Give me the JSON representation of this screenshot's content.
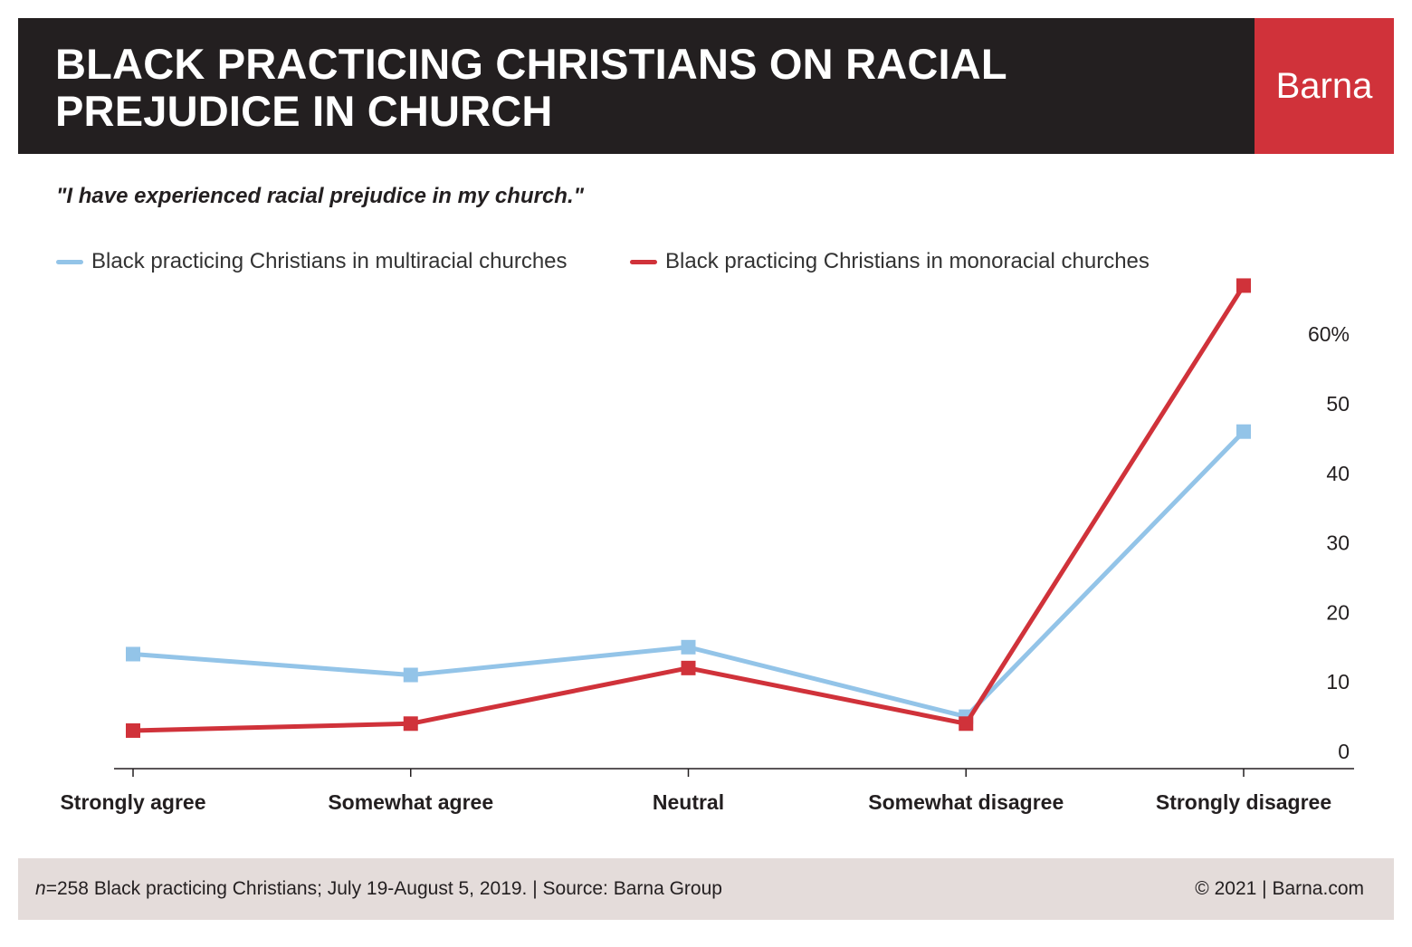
{
  "header": {
    "title": "BLACK PRACTICING CHRISTIANS ON RACIAL PREJUDICE IN CHURCH",
    "brand": "Barna"
  },
  "colors": {
    "header_bg": "#231f20",
    "brand_bg": "#d0323a",
    "footer_bg": "#e4dcda",
    "series_multiracial": "#93c4e8",
    "series_monoracial": "#d0323a"
  },
  "chart_data": {
    "type": "line",
    "title": "\"I have experienced racial prejudice in my church.\"",
    "xlabel": "",
    "ylabel": "",
    "categories": [
      "Strongly agree",
      "Somewhat agree",
      "Neutral",
      "Somewhat disagree",
      "Strongly disagree"
    ],
    "series": [
      {
        "name": "Black practicing Christians in multiracial churches",
        "values": [
          14,
          11,
          15,
          5,
          46
        ],
        "color": "#93c4e8"
      },
      {
        "name": "Black practicing Christians in monoracial churches",
        "values": [
          3,
          4,
          12,
          4,
          67
        ],
        "color": "#d0323a"
      }
    ],
    "ylim": [
      0,
      68
    ],
    "yticks": [
      0,
      10,
      20,
      30,
      40,
      50,
      60
    ],
    "ytick_labels": [
      "0",
      "10",
      "20",
      "30",
      "40",
      "50",
      "60%"
    ],
    "y_axis_side": "right",
    "grid": false,
    "legend": "top-left"
  },
  "footer": {
    "n_label": "n",
    "sample": "=258 Black practicing Christians; July 19-August 5, 2019. | Source: Barna Group",
    "copyright": "© 2021 |   Barna.com"
  }
}
